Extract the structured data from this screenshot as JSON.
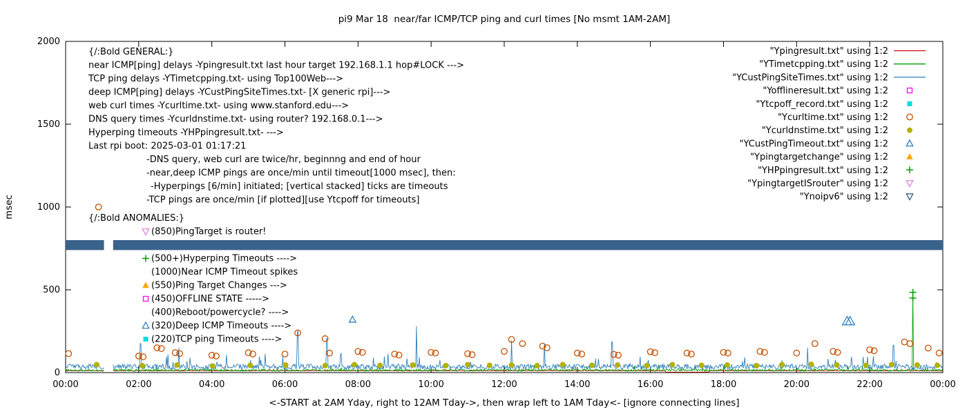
{
  "chart_data": {
    "type": "line",
    "title": "pi9 Mar 18  near/far ICMP/TCP ping and curl times [No msmt 1AM-2AM]",
    "ylabel": "msec",
    "xlabel": "<-START at 2AM Yday, right to 12AM Tday->, then wrap left to 1AM Tday<- [ignore connecting lines]",
    "ylim": [
      0,
      2000
    ],
    "yticks": [
      0,
      500,
      1000,
      1500,
      2000
    ],
    "xticks": [
      "00:00",
      "02:00",
      "04:00",
      "06:00",
      "08:00",
      "10:00",
      "12:00",
      "14:00",
      "16:00",
      "18:00",
      "20:00",
      "22:00",
      "00:00"
    ],
    "x_hours": 24,
    "no_msmt_gap": [
      1.05,
      1.3
    ],
    "legend": [
      {
        "label": "\"Ypingresult.txt\" using 1:2",
        "sample": "line",
        "color": "#d40000"
      },
      {
        "label": "\"YTimetcpping.txt\" using 1:2",
        "sample": "line",
        "color": "#00a000"
      },
      {
        "label": "\"YCustPingSiteTimes.txt\" using 1:2",
        "sample": "line",
        "color": "#2e7ebc"
      },
      {
        "label": "\"Yofflineresult.txt\" using 1:2",
        "sample": "square-open",
        "color": "#ff00ff"
      },
      {
        "label": "\"Ytcpoff_record.txt\" using 1:2",
        "sample": "square-filled",
        "color": "#00dede"
      },
      {
        "label": "\"Ycurltime.txt\" using 1:2",
        "sample": "circle-open",
        "color": "#c45000"
      },
      {
        "label": "\"Ycurldnstime.txt\" using 1:2",
        "sample": "circle-filled",
        "color": "#b2b200"
      },
      {
        "label": "\"YCustPingTimeout.txt\" using 1:2",
        "sample": "triangle-up-open",
        "color": "#2e7ebc"
      },
      {
        "label": "\"Ypingtargetchange\" using 1:2",
        "sample": "triangle-up-filled",
        "color": "#ffa500"
      },
      {
        "label": "\"YHPpingresult.txt\" using 1:2",
        "sample": "plus",
        "color": "#00a000"
      },
      {
        "label": "\"YpingtargetISrouter\" using 1:2",
        "sample": "triangle-down-open",
        "color": "#d984e0"
      },
      {
        "label": "\"Ynoipv6\" using 1:2",
        "sample": "triangle-down-open",
        "color": "#355f7f"
      }
    ],
    "annotations": {
      "general": [
        {
          "text": "{/:Bold GENERAL:}",
          "indent": 0
        },
        {
          "text": "near ICMP[ping] delays -Ypingresult.txt last hour target 192.168.1.1 hop#LOCK --->",
          "indent": 0
        },
        {
          "text": "TCP ping delays -YTimetcpping.txt- using Top100Web--->",
          "indent": 0
        },
        {
          "text": "deep ICMP[ping] delays -YCustPingSiteTimes.txt- [X generic rpi]--->",
          "indent": 0
        },
        {
          "text": "web curl times -Ycurltime.txt- using www.stanford.edu--->",
          "indent": 0
        },
        {
          "text": "DNS query times -Ycurldnstime.txt- using router? 192.168.0.1--->",
          "indent": 0
        },
        {
          "text": "Hyperping timeouts -YHPpingresult.txt- --->",
          "indent": 0
        },
        {
          "text": "Last rpi boot: 2025-03-01 01:17:21",
          "indent": 0
        },
        {
          "text": "-DNS query, web curl are twice/hr, beginnng and end of hour",
          "indent": 1
        },
        {
          "text": "-near,deep ICMP pings are once/min until timeout[1000 msec], then:",
          "indent": 1
        },
        {
          "text": "-Hyperpings [6/min] initiated; [vertical stacked] ticks are timeouts",
          "indent": 2
        },
        {
          "text": "-TCP pings are once/min [if plotted][use Ytcpoff for timeouts]",
          "indent": 1
        }
      ],
      "anomalies": [
        {
          "text": "{/:Bold ANOMALIES:}",
          "marker": null,
          "color": null,
          "lead": true
        },
        {
          "text": "(850)PingTarget is router!",
          "marker": "triangle-down-open",
          "color": "#d984e0"
        },
        {
          "text": "",
          "marker": null,
          "color": null
        },
        {
          "text": "(500+)Hyperping Timeouts ---->",
          "marker": "plus",
          "color": "#00a000"
        },
        {
          "text": "(1000)Near ICMP Timeout spikes",
          "marker": null,
          "color": null
        },
        {
          "text": "(550)Ping Target Changes --->",
          "marker": "triangle-up-filled",
          "color": "#ffa500"
        },
        {
          "text": "(450)OFFLINE STATE ----->",
          "marker": "square-open",
          "color": "#ff00ff"
        },
        {
          "text": "(400)Reboot/powercycle? ---->",
          "marker": null,
          "color": null
        },
        {
          "text": "(320)Deep ICMP Timeouts ---->",
          "marker": "triangle-up-open",
          "color": "#2e7ebc"
        },
        {
          "text": "(220)TCP ping Timeouts ---->",
          "marker": "square-filled",
          "color": "#00dede"
        }
      ]
    },
    "series": [
      {
        "name": "Ypingresult",
        "type": "line",
        "color": "#d40000",
        "baseline": 10,
        "noise": 4,
        "dips": [
          [
            16.4,
            17.6,
            3
          ]
        ]
      },
      {
        "name": "YTimetcpping",
        "type": "line",
        "color": "#00a000",
        "baseline": 8,
        "noise": 22,
        "spikes": [
          [
            23.18,
            470
          ]
        ]
      },
      {
        "name": "YCustPingSiteTimes",
        "type": "line",
        "color": "#2e7ebc",
        "baseline": 20,
        "noise": 52,
        "spikes": [
          [
            2.05,
            175
          ],
          [
            3.1,
            150
          ],
          [
            6.35,
            250
          ],
          [
            7.15,
            205
          ],
          [
            9.6,
            280
          ],
          [
            12.2,
            195
          ],
          [
            13.1,
            175
          ],
          [
            14.95,
            185
          ],
          [
            20.3,
            150
          ],
          [
            22.65,
            165
          ]
        ]
      },
      {
        "name": "Ynoipv6",
        "type": "band",
        "color": "#3a638c",
        "y_low": 740,
        "y_high": 800,
        "segments": [
          [
            0,
            1.05
          ],
          [
            1.3,
            24
          ]
        ]
      },
      {
        "name": "Ycurldnstime",
        "type": "scatter",
        "marker": "circle-filled",
        "color": "#b2b200",
        "points": [
          [
            0.85,
            48
          ],
          [
            2.1,
            42
          ],
          [
            3.05,
            46
          ],
          [
            4.02,
            40
          ],
          [
            5.05,
            44
          ],
          [
            6.02,
            46
          ],
          [
            7.1,
            42
          ],
          [
            7.9,
            48
          ],
          [
            8.6,
            44
          ],
          [
            9.5,
            46
          ],
          [
            10.4,
            42
          ],
          [
            11.0,
            48
          ],
          [
            11.6,
            44
          ],
          [
            12.2,
            46
          ],
          [
            12.9,
            42
          ],
          [
            13.6,
            48
          ],
          [
            14.4,
            44
          ],
          [
            15.1,
            46
          ],
          [
            15.9,
            42
          ],
          [
            16.6,
            48
          ],
          [
            17.4,
            44
          ],
          [
            18.1,
            46
          ],
          [
            18.9,
            42
          ],
          [
            19.6,
            48
          ],
          [
            20.4,
            50
          ],
          [
            21.1,
            46
          ],
          [
            21.9,
            44
          ],
          [
            22.6,
            48
          ],
          [
            23.3,
            46
          ],
          [
            23.85,
            44
          ]
        ]
      },
      {
        "name": "Ycurltime",
        "type": "scatter",
        "marker": "circle-open",
        "color": "#c45000",
        "points": [
          [
            0.08,
            115
          ],
          [
            0.9,
            1000
          ],
          [
            2.0,
            100
          ],
          [
            2.12,
            95
          ],
          [
            2.5,
            150
          ],
          [
            2.62,
            145
          ],
          [
            3.0,
            120
          ],
          [
            3.12,
            115
          ],
          [
            4.0,
            105
          ],
          [
            4.12,
            100
          ],
          [
            5.0,
            120
          ],
          [
            5.12,
            112
          ],
          [
            6.0,
            112
          ],
          [
            6.35,
            240
          ],
          [
            7.1,
            205
          ],
          [
            7.22,
            118
          ],
          [
            8.0,
            128
          ],
          [
            8.12,
            122
          ],
          [
            9.0,
            112
          ],
          [
            9.12,
            106
          ],
          [
            10.0,
            122
          ],
          [
            10.12,
            118
          ],
          [
            11.0,
            114
          ],
          [
            11.12,
            108
          ],
          [
            12.0,
            128
          ],
          [
            12.2,
            200
          ],
          [
            12.5,
            175
          ],
          [
            13.05,
            160
          ],
          [
            13.17,
            150
          ],
          [
            14.0,
            118
          ],
          [
            14.12,
            112
          ],
          [
            15.0,
            110
          ],
          [
            15.12,
            105
          ],
          [
            16.0,
            126
          ],
          [
            16.12,
            120
          ],
          [
            17.0,
            118
          ],
          [
            17.12,
            112
          ],
          [
            18.0,
            122
          ],
          [
            18.12,
            118
          ],
          [
            19.0,
            128
          ],
          [
            19.12,
            122
          ],
          [
            20.0,
            118
          ],
          [
            20.5,
            175
          ],
          [
            21.0,
            128
          ],
          [
            21.12,
            122
          ],
          [
            22.0,
            138
          ],
          [
            22.12,
            132
          ],
          [
            22.95,
            185
          ],
          [
            23.1,
            175
          ],
          [
            23.6,
            148
          ],
          [
            23.9,
            118
          ]
        ]
      },
      {
        "name": "YCustPingTimeout",
        "type": "scatter",
        "marker": "triangle-up-open",
        "color": "#2e7ebc",
        "points": [
          [
            7.85,
            320,
            5
          ],
          [
            21.38,
            310,
            7
          ],
          [
            21.46,
            310,
            7
          ]
        ]
      },
      {
        "name": "YHPpingresult",
        "type": "scatter",
        "marker": "plus",
        "color": "#00a000",
        "points": [
          [
            23.18,
            485,
            5
          ],
          [
            23.18,
            450,
            5
          ]
        ]
      }
    ]
  }
}
